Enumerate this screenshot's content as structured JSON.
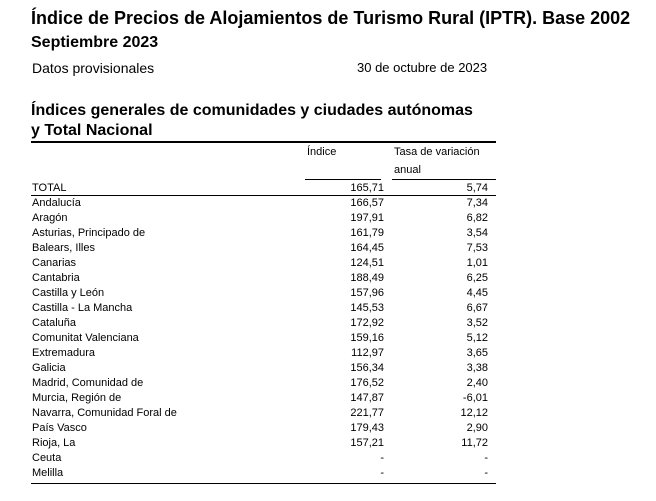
{
  "header": {
    "title": "Índice de Precios de Alojamientos de Turismo Rural (IPTR). Base 2002",
    "period": "Septiembre 2023",
    "note": "Datos provisionales",
    "date": "30 de octubre de 2023"
  },
  "section": {
    "title_line1": "Índices generales de comunidades y ciudades autónomas",
    "title_line2": "y Total Nacional"
  },
  "table": {
    "col_index": "Índice",
    "col_rate_line1": "Tasa de variación",
    "col_rate_line2": "anual",
    "rows": [
      {
        "name": "TOTAL",
        "index": "165,71",
        "rate": "5,74"
      },
      {
        "name": "Andalucía",
        "index": "166,57",
        "rate": "7,34"
      },
      {
        "name": "Aragón",
        "index": "197,91",
        "rate": "6,82"
      },
      {
        "name": "Asturias, Principado de",
        "index": "161,79",
        "rate": "3,54"
      },
      {
        "name": "Balears, Illes",
        "index": "164,45",
        "rate": "7,53"
      },
      {
        "name": "Canarias",
        "index": "124,51",
        "rate": "1,01"
      },
      {
        "name": "Cantabria",
        "index": "188,49",
        "rate": "6,25"
      },
      {
        "name": "Castilla y León",
        "index": "157,96",
        "rate": "4,45"
      },
      {
        "name": "Castilla - La Mancha",
        "index": "145,53",
        "rate": "6,67"
      },
      {
        "name": "Cataluña",
        "index": "172,92",
        "rate": "3,52"
      },
      {
        "name": "Comunitat Valenciana",
        "index": "159,16",
        "rate": "5,12"
      },
      {
        "name": "Extremadura",
        "index": "112,97",
        "rate": "3,65"
      },
      {
        "name": "Galicia",
        "index": "156,34",
        "rate": "3,38"
      },
      {
        "name": "Madrid, Comunidad de",
        "index": "176,52",
        "rate": "2,40"
      },
      {
        "name": "Murcia, Región de",
        "index": "147,87",
        "rate": "-6,01"
      },
      {
        "name": "Navarra, Comunidad Foral de",
        "index": "221,77",
        "rate": "12,12"
      },
      {
        "name": "País Vasco",
        "index": "179,43",
        "rate": "2,90"
      },
      {
        "name": "Rioja, La",
        "index": "157,21",
        "rate": "11,72"
      },
      {
        "name": "Ceuta",
        "index": "-",
        "rate": "-"
      },
      {
        "name": "Melilla",
        "index": "-",
        "rate": "-"
      }
    ]
  }
}
